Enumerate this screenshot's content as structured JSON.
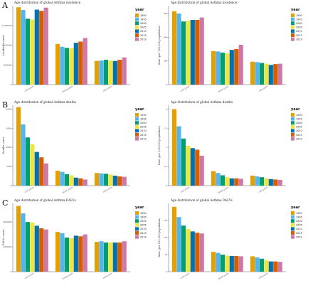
{
  "sections": [
    "A",
    "B",
    "C"
  ],
  "colors": {
    "1990": "#E69F00",
    "1995": "#56B4E9",
    "2000": "#009E73",
    "2005": "#F0E442",
    "2010": "#0072B2",
    "2015": "#D55E00",
    "2019": "#CC79A7"
  },
  "chart_data": [
    {
      "type": "bar",
      "section": "A",
      "title": "Age distribution of global Asthma incidence",
      "ylabel": "Incidence cases",
      "ylim": [
        0,
        20000000
      ],
      "yticks": [
        0,
        5000000,
        10000000,
        15000000
      ],
      "ytick_labels": [
        "0",
        "5000000",
        "10000000",
        "15000000"
      ],
      "categories": [
        "<20 years",
        "20-60 years",
        ">60 years"
      ],
      "legend_title": "year",
      "series": [
        {
          "name": "1990",
          "values": [
            19600000,
            10300000,
            6000000
          ]
        },
        {
          "name": "1995",
          "values": [
            18900000,
            9600000,
            6100000
          ]
        },
        {
          "name": "2000",
          "values": [
            16700000,
            9300000,
            6300000
          ]
        },
        {
          "name": "2005",
          "values": [
            16500000,
            9200000,
            6100000
          ]
        },
        {
          "name": "2010",
          "values": [
            19000000,
            10600000,
            6000000
          ]
        },
        {
          "name": "2015",
          "values": [
            18700000,
            10900000,
            6300000
          ]
        },
        {
          "name": "2019",
          "values": [
            19500000,
            11800000,
            6900000
          ]
        }
      ]
    },
    {
      "type": "bar",
      "section": "A",
      "title": "Age distribution of global Asthma incidence",
      "ylabel": "Rate (per 100,000 population)",
      "ylim": [
        0,
        1000
      ],
      "yticks": [
        0,
        300,
        600,
        900
      ],
      "ytick_labels": [
        "0",
        "300",
        "600",
        "900"
      ],
      "categories": [
        "<20 years",
        "20-60 years",
        ">60 years"
      ],
      "legend_title": "year",
      "series": [
        {
          "name": "1990",
          "values": [
            930,
            425,
            290
          ]
        },
        {
          "name": "1995",
          "values": [
            900,
            420,
            285
          ]
        },
        {
          "name": "2000",
          "values": [
            800,
            405,
            275
          ]
        },
        {
          "name": "2005",
          "values": [
            810,
            395,
            265
          ]
        },
        {
          "name": "2010",
          "values": [
            820,
            440,
            250
          ]
        },
        {
          "name": "2015",
          "values": [
            820,
            450,
            260
          ]
        },
        {
          "name": "2019",
          "values": [
            850,
            505,
            265
          ]
        }
      ]
    },
    {
      "type": "bar",
      "section": "B",
      "title": "Age distribution of global Asthma deaths",
      "ylabel": "Deaths cases",
      "ylim": [
        0,
        21000
      ],
      "yticks": [
        0,
        5000,
        10000,
        15000,
        20000
      ],
      "ytick_labels": [
        "0",
        "5000",
        "10000",
        "15000",
        "20000"
      ],
      "categories": [
        "<20 years",
        "20-60 years",
        ">60 years"
      ],
      "legend_title": "year",
      "series": [
        {
          "name": "1990",
          "values": [
            20500,
            3900,
            3300
          ]
        },
        {
          "name": "1995",
          "values": [
            16000,
            3600,
            3200
          ]
        },
        {
          "name": "2000",
          "values": [
            12600,
            3000,
            3100
          ]
        },
        {
          "name": "2005",
          "values": [
            10800,
            2700,
            2900
          ]
        },
        {
          "name": "2010",
          "values": [
            8800,
            2100,
            2600
          ]
        },
        {
          "name": "2015",
          "values": [
            7400,
            1900,
            2400
          ]
        },
        {
          "name": "2019",
          "values": [
            5800,
            1600,
            2300
          ]
        }
      ]
    },
    {
      "type": "bar",
      "section": "B",
      "title": "Age distribution of global Asthma deaths",
      "ylabel": "Rate (per 100,000 population)",
      "ylim": [
        0,
        2.1
      ],
      "yticks": [
        0,
        0.5,
        1,
        1.5,
        2
      ],
      "ytick_labels": [
        "0",
        "0.5",
        "1",
        "1.5",
        "2"
      ],
      "categories": [
        "<20 years",
        "20-60 years",
        ">60 years"
      ],
      "legend_title": "year",
      "series": [
        {
          "name": "1990",
          "values": [
            2.0,
            0.38,
            0.26
          ]
        },
        {
          "name": "1995",
          "values": [
            1.55,
            0.33,
            0.24
          ]
        },
        {
          "name": "2000",
          "values": [
            1.23,
            0.27,
            0.22
          ]
        },
        {
          "name": "2005",
          "values": [
            1.04,
            0.22,
            0.19
          ]
        },
        {
          "name": "2010",
          "values": [
            0.98,
            0.19,
            0.17
          ]
        },
        {
          "name": "2015",
          "values": [
            0.94,
            0.19,
            0.16
          ]
        },
        {
          "name": "2019",
          "values": [
            0.78,
            0.18,
            0.15
          ]
        }
      ]
    },
    {
      "type": "bar",
      "section": "C",
      "title": "Age distribution of global Asthma DALYs",
      "ylabel": "DALYs cases",
      "ylim": [
        0,
        5500000
      ],
      "yticks": [
        0,
        2000000,
        4000000
      ],
      "ytick_labels": [
        "0",
        "2000000",
        "4000000"
      ],
      "categories": [
        "<20 years",
        "20-60 years",
        ">60 years"
      ],
      "legend_title": "year",
      "series": [
        {
          "name": "1990",
          "values": [
            5300000,
            3200000,
            2400000
          ]
        },
        {
          "name": "1995",
          "values": [
            4700000,
            3100000,
            2450000
          ]
        },
        {
          "name": "2000",
          "values": [
            4000000,
            2750000,
            2350000
          ]
        },
        {
          "name": "2005",
          "values": [
            3950000,
            2700000,
            2350000
          ]
        },
        {
          "name": "2010",
          "values": [
            3700000,
            2900000,
            2350000
          ]
        },
        {
          "name": "2015",
          "values": [
            3500000,
            2850000,
            2350000
          ]
        },
        {
          "name": "2019",
          "values": [
            3400000,
            3000000,
            2450000
          ]
        }
      ]
    },
    {
      "type": "bar",
      "section": "C",
      "title": "Age distribution of global Asthma DALYs",
      "ylabel": "Rate (per 100,000 population)",
      "ylim": [
        0,
        200
      ],
      "yticks": [
        0,
        50,
        100,
        150
      ],
      "ytick_labels": [
        "0",
        "50",
        "100",
        "150"
      ],
      "categories": [
        "<20 years",
        "20-60 years",
        ">60 years"
      ],
      "legend_title": "year",
      "series": [
        {
          "name": "1990",
          "values": [
            190,
            58,
            45
          ]
        },
        {
          "name": "1995",
          "values": [
            160,
            55,
            42
          ]
        },
        {
          "name": "2000",
          "values": [
            135,
            50,
            38
          ]
        },
        {
          "name": "2005",
          "values": [
            125,
            47,
            33
          ]
        },
        {
          "name": "2010",
          "values": [
            118,
            46,
            30
          ]
        },
        {
          "name": "2015",
          "values": [
            114,
            46,
            30
          ]
        },
        {
          "name": "2019",
          "values": [
            112,
            45,
            29
          ]
        }
      ]
    }
  ]
}
